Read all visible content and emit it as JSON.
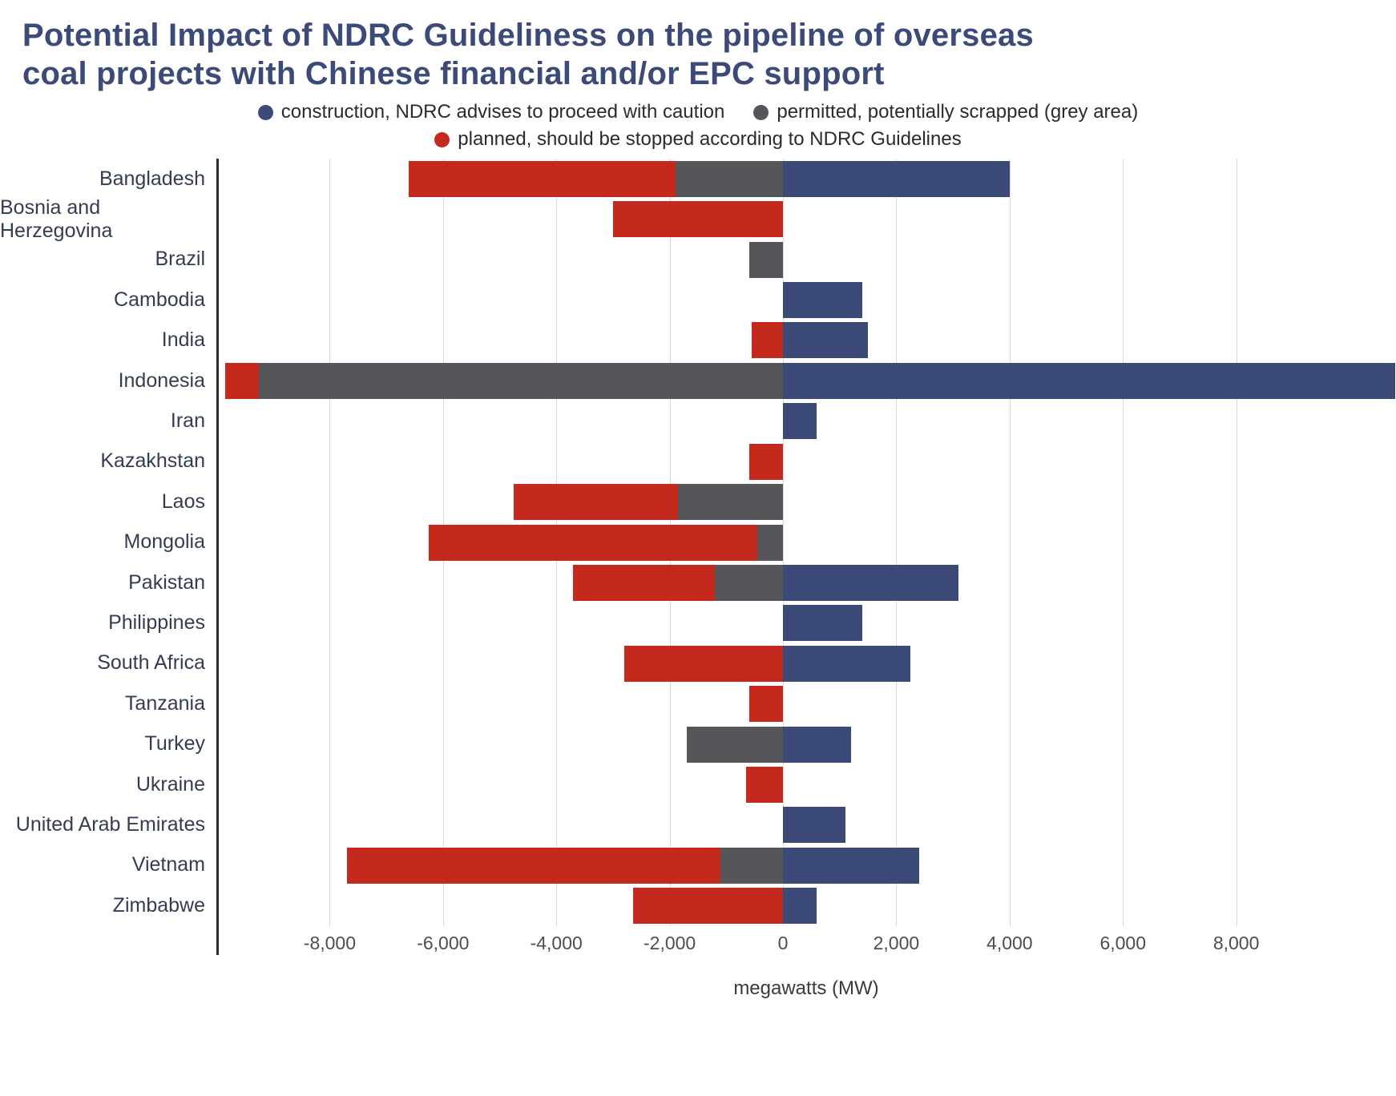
{
  "title": "Potential Impact of NDRC Guideliness on the pipeline of overseas\ncoal projects with Chinese financial and/or EPC support",
  "chart_data": {
    "type": "bar",
    "variant": "horizontal-diverging-stacked",
    "title": "Potential Impact of NDRC Guideliness on the pipeline of overseas coal projects with Chinese financial and/or EPC support",
    "xlabel": "megawatts (MW)",
    "units": "MW",
    "grid": "vertical gridlines at ticks",
    "legend_position": "top",
    "x_domain": [
      -10000,
      10820
    ],
    "x_ticks": [
      -8000,
      -6000,
      -4000,
      -2000,
      0,
      2000,
      4000,
      6000,
      8000
    ],
    "x_ticks_labels": [
      "-8,000",
      "-6,000",
      "-4,000",
      "-2,000",
      "0",
      "2,000",
      "4,000",
      "6,000",
      "8,000"
    ],
    "categories": [
      "Bangladesh",
      "Bosnia and Herzegovina",
      "Brazil",
      "Cambodia",
      "India",
      "Indonesia",
      "Iran",
      "Kazakhstan",
      "Laos",
      "Mongolia",
      "Pakistan",
      "Philippines",
      "South Africa",
      "Tanzania",
      "Turkey",
      "Ukraine",
      "United Arab Emirates",
      "Vietnam",
      "Zimbabwe"
    ],
    "series": [
      {
        "name": "construction, NDRC advises to proceed with caution",
        "color": "#3C4A78",
        "direction": "positive",
        "values": [
          4000,
          0,
          0,
          1400,
          1500,
          10800,
          600,
          0,
          0,
          0,
          3100,
          1400,
          2250,
          0,
          1200,
          0,
          1100,
          2400,
          600
        ]
      },
      {
        "name": "permitted, potentially scrapped (grey area)",
        "color": "#56565A",
        "direction": "negative",
        "values": [
          1900,
          0,
          600,
          0,
          0,
          9250,
          0,
          0,
          1850,
          450,
          1200,
          0,
          0,
          0,
          1700,
          0,
          0,
          1100,
          0
        ]
      },
      {
        "name": "planned, should be stopped according to NDRC Guidelines",
        "color": "#C5291D",
        "direction": "negative",
        "values": [
          4700,
          3000,
          0,
          0,
          550,
          600,
          0,
          600,
          2900,
          5800,
          2500,
          0,
          2800,
          600,
          0,
          650,
          0,
          6600,
          2650
        ]
      }
    ]
  }
}
